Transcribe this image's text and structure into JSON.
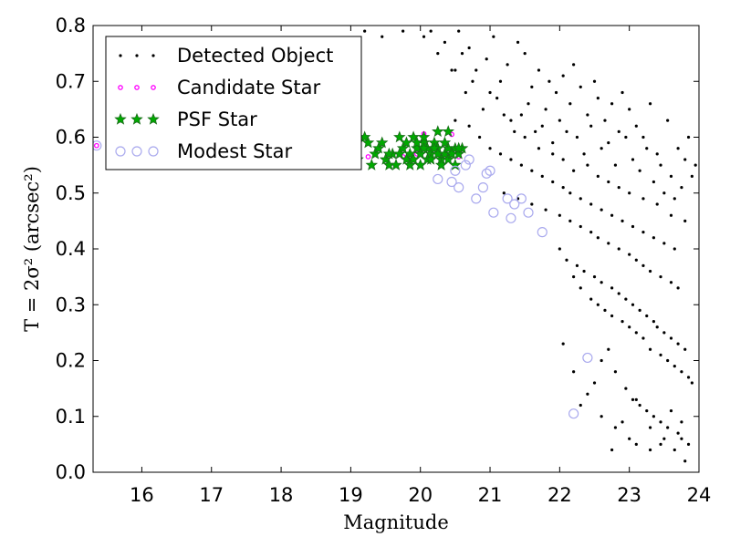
{
  "chart_data": {
    "type": "scatter",
    "title": "",
    "xlabel": "Magnitude",
    "ylabel": "T = 2σ² (arcsec²)",
    "xlim": [
      15.3,
      24
    ],
    "ylim": [
      0.0,
      0.8
    ],
    "xticks": [
      16,
      17,
      18,
      19,
      20,
      21,
      22,
      23,
      24
    ],
    "yticks": [
      0.0,
      0.1,
      0.2,
      0.3,
      0.4,
      0.5,
      0.6,
      0.7,
      0.8
    ],
    "xtick_labels": [
      "16",
      "17",
      "18",
      "19",
      "20",
      "21",
      "22",
      "23",
      "24"
    ],
    "ytick_labels": [
      "0.0",
      "0.1",
      "0.2",
      "0.3",
      "0.4",
      "0.5",
      "0.6",
      "0.7",
      "0.8"
    ],
    "grid": false,
    "legend_position": "top-left",
    "series": [
      {
        "name": "Detected Object",
        "marker": "dot",
        "color": "#000000",
        "x": [
          19.2,
          19.45,
          19.75,
          20.05,
          20.15,
          20.35,
          20.55,
          20.6,
          20.7,
          20.8,
          20.95,
          21.05,
          21.15,
          21.25,
          21.4,
          21.5,
          21.6,
          21.7,
          21.85,
          21.95,
          22.05,
          22.15,
          22.2,
          22.3,
          22.4,
          22.5,
          22.55,
          22.65,
          22.75,
          22.85,
          22.9,
          23.0,
          23.1,
          23.2,
          23.3,
          23.4,
          23.55,
          23.7,
          23.8,
          23.85,
          23.9,
          23.95,
          20.45,
          20.65,
          20.9,
          21.1,
          21.3,
          21.45,
          21.55,
          21.65,
          21.75,
          21.8,
          21.9,
          22.0,
          22.1,
          22.25,
          22.35,
          22.45,
          22.6,
          22.7,
          22.8,
          22.95,
          23.05,
          23.15,
          23.25,
          23.35,
          23.45,
          23.5,
          23.6,
          23.65,
          23.75,
          20.25,
          20.5,
          20.75,
          21.0,
          21.2,
          21.35,
          21.5,
          21.7,
          21.9,
          22.05,
          22.2,
          22.4,
          22.55,
          22.7,
          22.85,
          23.0,
          23.2,
          23.4,
          23.6,
          23.8,
          20.5,
          20.7,
          20.85,
          21.0,
          21.15,
          21.3,
          21.45,
          21.6,
          21.75,
          21.9,
          22.05,
          22.15,
          22.3,
          22.45,
          22.6,
          22.75,
          22.9,
          23.05,
          23.2,
          23.35,
          23.5,
          23.65,
          21.2,
          21.4,
          21.6,
          21.8,
          22.0,
          22.15,
          22.3,
          22.45,
          22.55,
          22.7,
          22.85,
          23.0,
          23.1,
          23.2,
          23.3,
          23.45,
          23.6,
          23.7,
          22.0,
          22.1,
          22.25,
          22.35,
          22.5,
          22.6,
          22.75,
          22.85,
          22.95,
          23.05,
          23.15,
          23.25,
          23.35,
          23.4,
          23.5,
          23.6,
          23.7,
          23.8,
          22.2,
          22.3,
          22.45,
          22.55,
          22.65,
          22.75,
          22.9,
          23.0,
          23.1,
          23.2,
          23.3,
          23.45,
          23.55,
          23.65,
          23.75,
          23.85,
          23.9,
          22.3,
          22.5,
          22.6,
          22.7,
          22.8,
          22.95,
          23.05,
          23.15,
          23.25,
          23.35,
          23.45,
          23.55,
          23.7,
          23.75,
          23.85,
          22.05,
          22.2,
          22.4,
          22.6,
          22.8,
          23.0,
          23.1,
          23.3,
          23.5,
          23.65,
          23.8,
          22.75,
          22.9,
          23.1,
          23.3,
          23.45,
          23.6,
          23.75
        ],
        "y": [
          0.79,
          0.78,
          0.79,
          0.78,
          0.79,
          0.77,
          0.79,
          0.75,
          0.76,
          0.72,
          0.74,
          0.78,
          0.7,
          0.73,
          0.77,
          0.75,
          0.69,
          0.72,
          0.7,
          0.68,
          0.71,
          0.66,
          0.73,
          0.69,
          0.64,
          0.7,
          0.67,
          0.63,
          0.66,
          0.61,
          0.68,
          0.65,
          0.62,
          0.6,
          0.66,
          0.57,
          0.63,
          0.58,
          0.56,
          0.6,
          0.53,
          0.55,
          0.72,
          0.68,
          0.65,
          0.67,
          0.63,
          0.64,
          0.66,
          0.61,
          0.62,
          0.65,
          0.59,
          0.63,
          0.61,
          0.6,
          0.57,
          0.62,
          0.58,
          0.59,
          0.55,
          0.6,
          0.56,
          0.54,
          0.58,
          0.52,
          0.55,
          0.5,
          0.53,
          0.49,
          0.51,
          0.75,
          0.72,
          0.7,
          0.68,
          0.64,
          0.61,
          0.6,
          0.58,
          0.57,
          0.56,
          0.54,
          0.55,
          0.53,
          0.52,
          0.51,
          0.5,
          0.49,
          0.48,
          0.46,
          0.45,
          0.63,
          0.62,
          0.6,
          0.58,
          0.57,
          0.56,
          0.55,
          0.54,
          0.53,
          0.52,
          0.51,
          0.5,
          0.49,
          0.48,
          0.47,
          0.46,
          0.45,
          0.44,
          0.43,
          0.42,
          0.41,
          0.4,
          0.5,
          0.49,
          0.48,
          0.47,
          0.46,
          0.45,
          0.44,
          0.43,
          0.42,
          0.41,
          0.4,
          0.39,
          0.38,
          0.37,
          0.36,
          0.35,
          0.34,
          0.33,
          0.4,
          0.38,
          0.37,
          0.36,
          0.35,
          0.34,
          0.33,
          0.32,
          0.31,
          0.3,
          0.29,
          0.28,
          0.27,
          0.26,
          0.25,
          0.24,
          0.23,
          0.22,
          0.35,
          0.33,
          0.31,
          0.3,
          0.29,
          0.28,
          0.27,
          0.26,
          0.25,
          0.24,
          0.22,
          0.21,
          0.2,
          0.19,
          0.18,
          0.17,
          0.16,
          0.12,
          0.16,
          0.2,
          0.22,
          0.18,
          0.15,
          0.13,
          0.12,
          0.11,
          0.1,
          0.09,
          0.08,
          0.07,
          0.06,
          0.05,
          0.23,
          0.18,
          0.14,
          0.1,
          0.08,
          0.06,
          0.05,
          0.04,
          0.06,
          0.04,
          0.02,
          0.04,
          0.09,
          0.13,
          0.08,
          0.05,
          0.11,
          0.09
        ]
      },
      {
        "name": "Candidate Star",
        "marker": "small-circle",
        "color": "#ff00ff",
        "x": [
          15.35,
          19.25,
          19.5,
          19.75,
          19.95,
          20.05,
          20.15,
          20.3,
          20.45,
          20.55
        ],
        "y": [
          0.585,
          0.565,
          0.56,
          0.565,
          0.57,
          0.606,
          0.57,
          0.56,
          0.605,
          0.565
        ]
      },
      {
        "name": "PSF Star",
        "marker": "star",
        "color": "#00aa00",
        "x": [
          19.0,
          19.1,
          19.2,
          19.3,
          19.35,
          19.4,
          19.5,
          19.55,
          19.6,
          19.7,
          19.75,
          19.8,
          19.85,
          19.9,
          19.95,
          20.0,
          20.05,
          20.1,
          20.15,
          20.2,
          20.25,
          20.3,
          20.35,
          20.4,
          20.45,
          20.5,
          20.55,
          20.6,
          19.65,
          19.8,
          19.9,
          19.95,
          20.0,
          20.05,
          20.1,
          20.2,
          20.3,
          20.4,
          20.5,
          19.45,
          19.7,
          19.85,
          20.0,
          20.15,
          20.25,
          20.35,
          20.45,
          20.55,
          19.25,
          19.55,
          19.9,
          20.05,
          20.25,
          20.4
        ],
        "y": [
          0.58,
          0.56,
          0.6,
          0.55,
          0.57,
          0.58,
          0.56,
          0.55,
          0.57,
          0.6,
          0.58,
          0.59,
          0.57,
          0.56,
          0.58,
          0.57,
          0.59,
          0.58,
          0.57,
          0.59,
          0.58,
          0.56,
          0.57,
          0.58,
          0.57,
          0.58,
          0.57,
          0.58,
          0.55,
          0.56,
          0.6,
          0.59,
          0.55,
          0.6,
          0.56,
          0.58,
          0.55,
          0.56,
          0.55,
          0.59,
          0.57,
          0.55,
          0.57,
          0.56,
          0.61,
          0.59,
          0.57,
          0.58,
          0.59,
          0.57,
          0.56,
          0.58,
          0.57,
          0.61
        ]
      },
      {
        "name": "Modest Star",
        "marker": "open-circle",
        "color": "#aaaaee",
        "x": [
          15.35,
          20.25,
          20.45,
          20.5,
          20.55,
          20.65,
          20.8,
          20.9,
          21.0,
          21.05,
          21.25,
          21.3,
          21.35,
          21.45,
          21.55,
          21.75,
          22.2,
          22.4,
          20.7,
          20.95
        ],
        "y": [
          0.585,
          0.525,
          0.52,
          0.54,
          0.51,
          0.55,
          0.49,
          0.51,
          0.54,
          0.465,
          0.49,
          0.455,
          0.48,
          0.49,
          0.465,
          0.43,
          0.105,
          0.205,
          0.56,
          0.535
        ]
      }
    ]
  }
}
